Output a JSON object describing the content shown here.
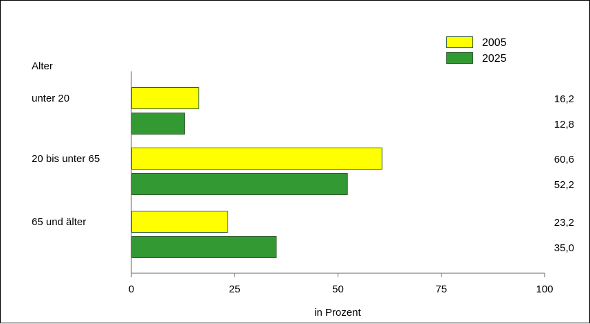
{
  "chart_data": {
    "type": "bar",
    "orientation": "horizontal",
    "title": "",
    "ylabel": "Alter",
    "xlabel": "in Prozent",
    "categories": [
      "unter 20",
      "20 bis unter 65",
      "65 und älter"
    ],
    "series": [
      {
        "name": "2005",
        "values": [
          16.2,
          60.6,
          23.2
        ],
        "value_labels": [
          "16,2",
          "60,6",
          "23,2"
        ],
        "color": "#ffff00"
      },
      {
        "name": "2025",
        "values": [
          12.8,
          52.2,
          35.0
        ],
        "value_labels": [
          "12,8",
          "52,2",
          "35,0"
        ],
        "color": "#339933"
      }
    ],
    "xlim": [
      0,
      100
    ],
    "xticks": [
      0,
      25,
      50,
      75,
      100
    ],
    "xtick_labels": [
      "0",
      "25",
      "50",
      "75",
      "100"
    ],
    "grid": false,
    "legend_position": "top-right",
    "bar_edge_color": "#2f5f2f",
    "axis_color": "#666666"
  }
}
